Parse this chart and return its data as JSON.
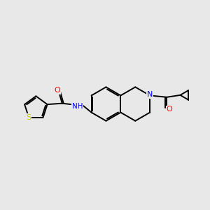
{
  "background_color": "#e8e8e8",
  "bond_color": "#000000",
  "atom_colors": {
    "O": "#ff0000",
    "N": "#0000ff",
    "S": "#cccc00",
    "C": "#000000",
    "H": "#000000"
  },
  "figsize": [
    3.0,
    3.0
  ],
  "dpi": 100
}
